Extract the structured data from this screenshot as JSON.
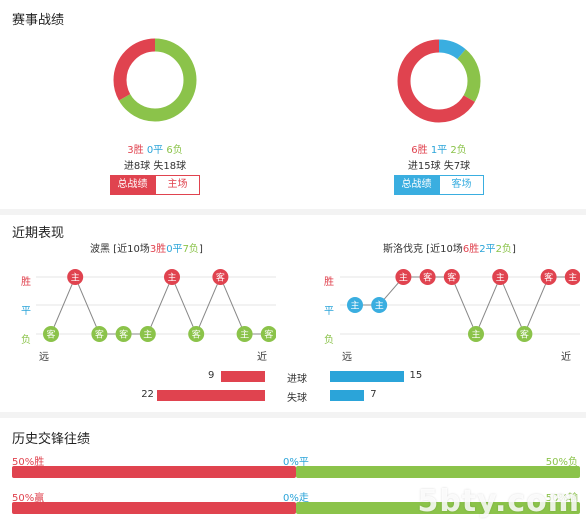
{
  "sections": {
    "record_title": "赛事战绩",
    "recent_title": "近期表现",
    "history_title": "历史交锋往绩"
  },
  "colors": {
    "win": "#e0434f",
    "draw": "#3aaee0",
    "loss": "#8bc34a",
    "home_badge": "#e0434f",
    "away_badge": "#8bc34a"
  },
  "left_record": {
    "wins": 3,
    "draws": 0,
    "losses": 6,
    "wins_text": "3胜",
    "draws_text": "0平",
    "losses_text": "6负",
    "goals_text": "进8球 失18球",
    "tab_overall": "总战绩",
    "tab_venue": "主场"
  },
  "right_record": {
    "wins": 6,
    "draws": 1,
    "losses": 2,
    "wins_text": "6胜",
    "draws_text": "1平",
    "losses_text": "2负",
    "goals_text": "进15球 失7球",
    "tab_overall": "总战绩",
    "tab_venue": "客场"
  },
  "recent": {
    "row_labels": {
      "win": "胜",
      "draw": "平",
      "loss": "负"
    },
    "far_label": "远",
    "near_label": "近",
    "left": {
      "team": "波黑",
      "summary_prefix": " [近10场",
      "wins_text": "3胜",
      "draws_text": "0平",
      "losses_text": "7负",
      "summary_suffix": "]",
      "results": [
        "L",
        "W",
        "L",
        "L",
        "L",
        "W",
        "L",
        "W",
        "L",
        "L"
      ],
      "venues": [
        "客",
        "主",
        "客",
        "客",
        "主",
        "主",
        "客",
        "客",
        "主",
        "客"
      ]
    },
    "right": {
      "team": "斯洛伐克",
      "summary_prefix": " [近10场",
      "wins_text": "6胜",
      "draws_text": "2平",
      "losses_text": "2负",
      "summary_suffix": "]",
      "results": [
        "D",
        "D",
        "W",
        "W",
        "W",
        "L",
        "W",
        "L",
        "W",
        "W"
      ],
      "venues": [
        "主",
        "主",
        "主",
        "客",
        "客",
        "主",
        "主",
        "客",
        "客",
        "主"
      ]
    }
  },
  "goals": {
    "scored_label": "进球",
    "conceded_label": "失球",
    "left_scored": 9,
    "left_conceded": 22,
    "right_scored": 15,
    "right_conceded": 7
  },
  "history": {
    "rows": [
      {
        "left_text": "50%胜",
        "mid_text": "0%平",
        "right_text": "50%负",
        "left_pct": 50,
        "mid_pct": 0,
        "right_pct": 50
      },
      {
        "left_text": "50%赢",
        "mid_text": "0%走",
        "right_text": "50%输",
        "left_pct": 50,
        "mid_pct": 0,
        "right_pct": 50
      }
    ]
  },
  "watermark": "5bty.com"
}
